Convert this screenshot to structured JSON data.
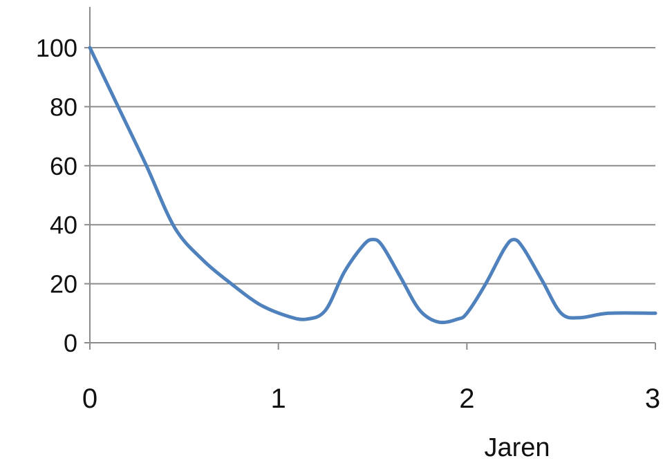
{
  "chart_data": {
    "type": "line",
    "title": "",
    "xlabel": "Jaren",
    "ylabel": "",
    "xlim": [
      0,
      3
    ],
    "ylim": [
      0,
      110
    ],
    "x_ticks": [
      0,
      1,
      2,
      3
    ],
    "y_ticks": [
      0,
      20,
      40,
      60,
      80,
      100
    ],
    "grid": {
      "horizontal": true,
      "vertical": false
    },
    "series": [
      {
        "color": "#4F81BD",
        "x": [
          0,
          0.15,
          0.3,
          0.45,
          0.6,
          0.75,
          0.9,
          1.05,
          1.15,
          1.25,
          1.35,
          1.45,
          1.5,
          1.55,
          1.65,
          1.75,
          1.85,
          1.95,
          2.0,
          2.1,
          2.2,
          2.25,
          2.3,
          2.4,
          2.5,
          2.6,
          2.75,
          3.0
        ],
        "y": [
          100,
          80,
          60,
          39,
          28,
          20,
          13,
          9,
          8,
          11,
          24,
          33,
          35,
          33,
          22,
          11,
          7,
          8,
          10,
          20,
          32,
          35,
          32,
          21,
          10,
          8.5,
          10,
          10
        ]
      }
    ]
  }
}
